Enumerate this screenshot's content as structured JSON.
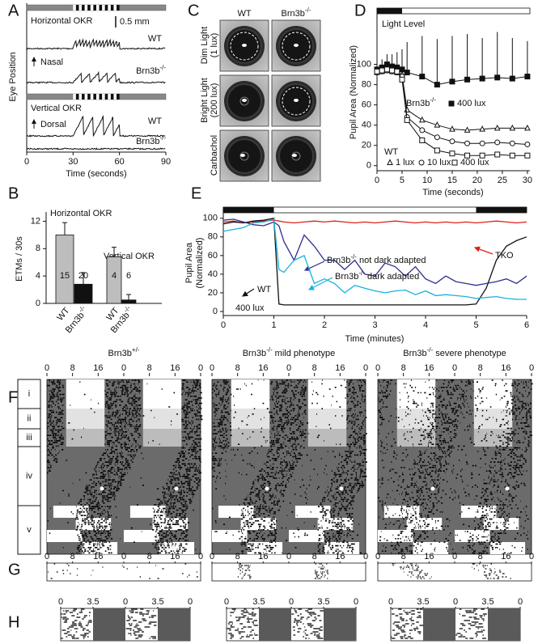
{
  "chart_data": [
    {
      "label": "A",
      "type": "trace",
      "x_label": "Time (seconds)",
      "y_label": "Eye Position",
      "xlim": [
        0,
        90
      ],
      "xticks": [
        0,
        30,
        60,
        90
      ],
      "stimulus": [
        30,
        60
      ],
      "scale_bar": "0.5 mm",
      "conditions": [
        {
          "title": "Horizontal OKR",
          "direction": "Nasal",
          "traces": [
            "WT",
            [
              "Brn3b",
              "-/-"
            ]
          ]
        },
        {
          "title": "Vertical OKR",
          "direction": "Dorsal",
          "traces": [
            "WT",
            [
              "Brn3b",
              "-/-"
            ]
          ]
        }
      ]
    },
    {
      "label": "B",
      "type": "bar",
      "y_label": "ETMs / 30s",
      "ylim": [
        0,
        13
      ],
      "yticks": [
        0,
        4,
        8,
        12
      ],
      "groups": [
        {
          "name": "Horizontal OKR",
          "categories": [
            "WT",
            [
              "Brn3b",
              "-/-"
            ]
          ],
          "values": [
            10,
            2.8
          ],
          "errors": [
            1.8,
            1.7
          ],
          "n": [
            15,
            20
          ],
          "colors": [
            "#bdbdbd",
            "#111111"
          ]
        },
        {
          "name": "Vertical OKR",
          "categories": [
            "WT",
            [
              "Brn3b",
              "-/-"
            ]
          ],
          "values": [
            6.8,
            0.5
          ],
          "errors": [
            1.4,
            0.8
          ],
          "n": [
            4,
            6
          ],
          "colors": [
            "#bdbdbd",
            "#111111"
          ]
        }
      ]
    },
    {
      "label": "C",
      "type": "image",
      "columns": [
        "WT",
        [
          "Brn3b",
          "-/-"
        ]
      ],
      "rows": [
        [
          "Dim Light",
          "(1 lux)"
        ],
        [
          "Bright Light",
          "(200 lux)"
        ],
        [
          "Carbachol"
        ]
      ]
    },
    {
      "label": "D",
      "type": "line",
      "light_label": "Light Level",
      "light_onset": 5,
      "x_label": "Time (seconds)",
      "y_label": "Pupil Area (Normalized)",
      "xlim": [
        0,
        30.5
      ],
      "xticks": [
        0,
        5,
        10,
        15,
        20,
        25,
        30
      ],
      "ylim": [
        -5,
        150
      ],
      "yticks": [
        0,
        20,
        40,
        60,
        80,
        100
      ],
      "x": [
        0,
        1,
        2,
        3,
        4,
        5,
        6,
        9,
        12,
        15,
        18,
        21,
        24,
        27,
        30
      ],
      "groups": [
        {
          "label": [
            "Brn3b",
            "-/-"
          ],
          "series": [
            {
              "name": "400 lux",
              "marker": "filled-square",
              "color": "#111111",
              "values": [
                95,
                97,
                100,
                98,
                97,
                95,
                92,
                88,
                80,
                83,
                85,
                86,
                87,
                86,
                88
              ],
              "errors": [
                5,
                8,
                10,
                12,
                15,
                20,
                30,
                40,
                45,
                45,
                45,
                40,
                45,
                40,
                35
              ]
            }
          ]
        },
        {
          "label": "WT",
          "series": [
            {
              "name": "1 lux",
              "marker": "triangle",
              "color": "#111111",
              "values": [
                92,
                93,
                94,
                93,
                92,
                90,
                55,
                45,
                40,
                36,
                35,
                36,
                37,
                37,
                37
              ]
            },
            {
              "name": "10 lux",
              "marker": "circle",
              "color": "#111111",
              "values": [
                92,
                93,
                94,
                93,
                92,
                88,
                48,
                35,
                28,
                24,
                22,
                22,
                23,
                22,
                21
              ]
            },
            {
              "name": "400 lux",
              "marker": "square",
              "color": "#111111",
              "values": [
                93,
                94,
                95,
                94,
                93,
                85,
                45,
                25,
                15,
                12,
                10,
                10,
                11,
                10,
                10
              ]
            }
          ]
        }
      ]
    },
    {
      "label": "E",
      "type": "line",
      "x_label": "Time (minutes)",
      "y_label": [
        "Pupil Area",
        "(Normalized)"
      ],
      "light_period": [
        1,
        5
      ],
      "annotation": "400 lux",
      "xlim": [
        0,
        6
      ],
      "xticks": [
        0,
        1,
        2,
        3,
        4,
        5,
        6
      ],
      "ylim": [
        -4,
        105
      ],
      "yticks": [
        0,
        20,
        40,
        60,
        80,
        100
      ],
      "x": [
        0,
        0.2,
        0.4,
        0.6,
        0.8,
        1,
        1.1,
        1.2,
        1.4,
        1.6,
        1.8,
        2,
        2.2,
        2.4,
        2.6,
        2.8,
        3,
        3.2,
        3.4,
        3.6,
        3.8,
        4,
        4.2,
        4.4,
        4.6,
        4.8,
        5,
        5.2,
        5.4,
        5.6,
        5.8,
        6
      ],
      "series": [
        {
          "name": "TKO",
          "color": "#e0201b",
          "values": [
            96,
            97,
            95,
            96,
            97,
            98,
            97,
            96,
            95,
            96,
            97,
            96,
            97,
            96,
            95,
            96,
            95,
            96,
            97,
            96,
            95,
            96,
            95,
            96,
            95,
            96,
            95,
            96,
            97,
            96,
            95,
            96
          ]
        },
        {
          "name": "WT",
          "color": "#111111",
          "values": [
            94,
            96,
            95,
            97,
            98,
            100,
            8,
            7,
            7,
            7,
            7,
            7,
            7,
            7,
            7,
            7,
            7,
            7,
            7,
            7,
            7,
            7,
            7,
            7,
            7,
            7,
            8,
            25,
            55,
            70,
            76,
            80
          ]
        },
        {
          "name": [
            "Brn3b",
            "-/-",
            " not dark adapted"
          ],
          "color": "#2e2f8f",
          "values": [
            98,
            99,
            96,
            93,
            92,
            96,
            92,
            75,
            55,
            82,
            70,
            55,
            55,
            45,
            55,
            40,
            38,
            52,
            48,
            38,
            48,
            35,
            30,
            38,
            32,
            30,
            28,
            30,
            32,
            35,
            30,
            38
          ]
        },
        {
          "name": [
            "Brn3b",
            "-/-",
            " dark adapted"
          ],
          "color": "#19b2dd",
          "values": [
            86,
            88,
            90,
            95,
            96,
            99,
            45,
            42,
            55,
            60,
            30,
            35,
            30,
            20,
            28,
            25,
            22,
            20,
            22,
            23,
            18,
            22,
            17,
            18,
            17,
            16,
            14,
            15,
            16,
            14,
            13,
            13
          ]
        }
      ]
    },
    {
      "label": "F",
      "type": "actogram",
      "xlim": [
        0,
        48
      ],
      "xticks": [
        0,
        8,
        16,
        {
          "value": 24,
          "label": "0"
        },
        {
          "value": 32,
          "label": "8"
        },
        {
          "value": 40,
          "label": "16"
        },
        {
          "value": 48,
          "label": "0"
        }
      ],
      "titles": [
        [
          "Brn3b",
          "+/-"
        ],
        [
          "Brn3b",
          "-/-",
          " mild phenotype"
        ],
        [
          "Brn3b",
          "-/-",
          " severe phenotype"
        ]
      ],
      "conditions": [
        "i",
        "ii",
        "iii",
        "iv",
        "v"
      ]
    },
    {
      "label": "G",
      "type": "actogram",
      "xlim": [
        0,
        48
      ],
      "xticks": [
        0,
        8,
        16,
        {
          "value": 24,
          "label": "0"
        },
        {
          "value": 32,
          "label": "8"
        },
        {
          "value": 40,
          "label": "16"
        },
        {
          "value": 48,
          "label": "0"
        }
      ]
    },
    {
      "label": "H",
      "type": "actogram",
      "xlim": [
        0,
        14
      ],
      "xticks": [
        0,
        3.5,
        {
          "value": 7,
          "label": "0"
        },
        {
          "value": 10.5,
          "label": "3.5"
        },
        {
          "value": 14,
          "label": "0"
        }
      ]
    }
  ]
}
